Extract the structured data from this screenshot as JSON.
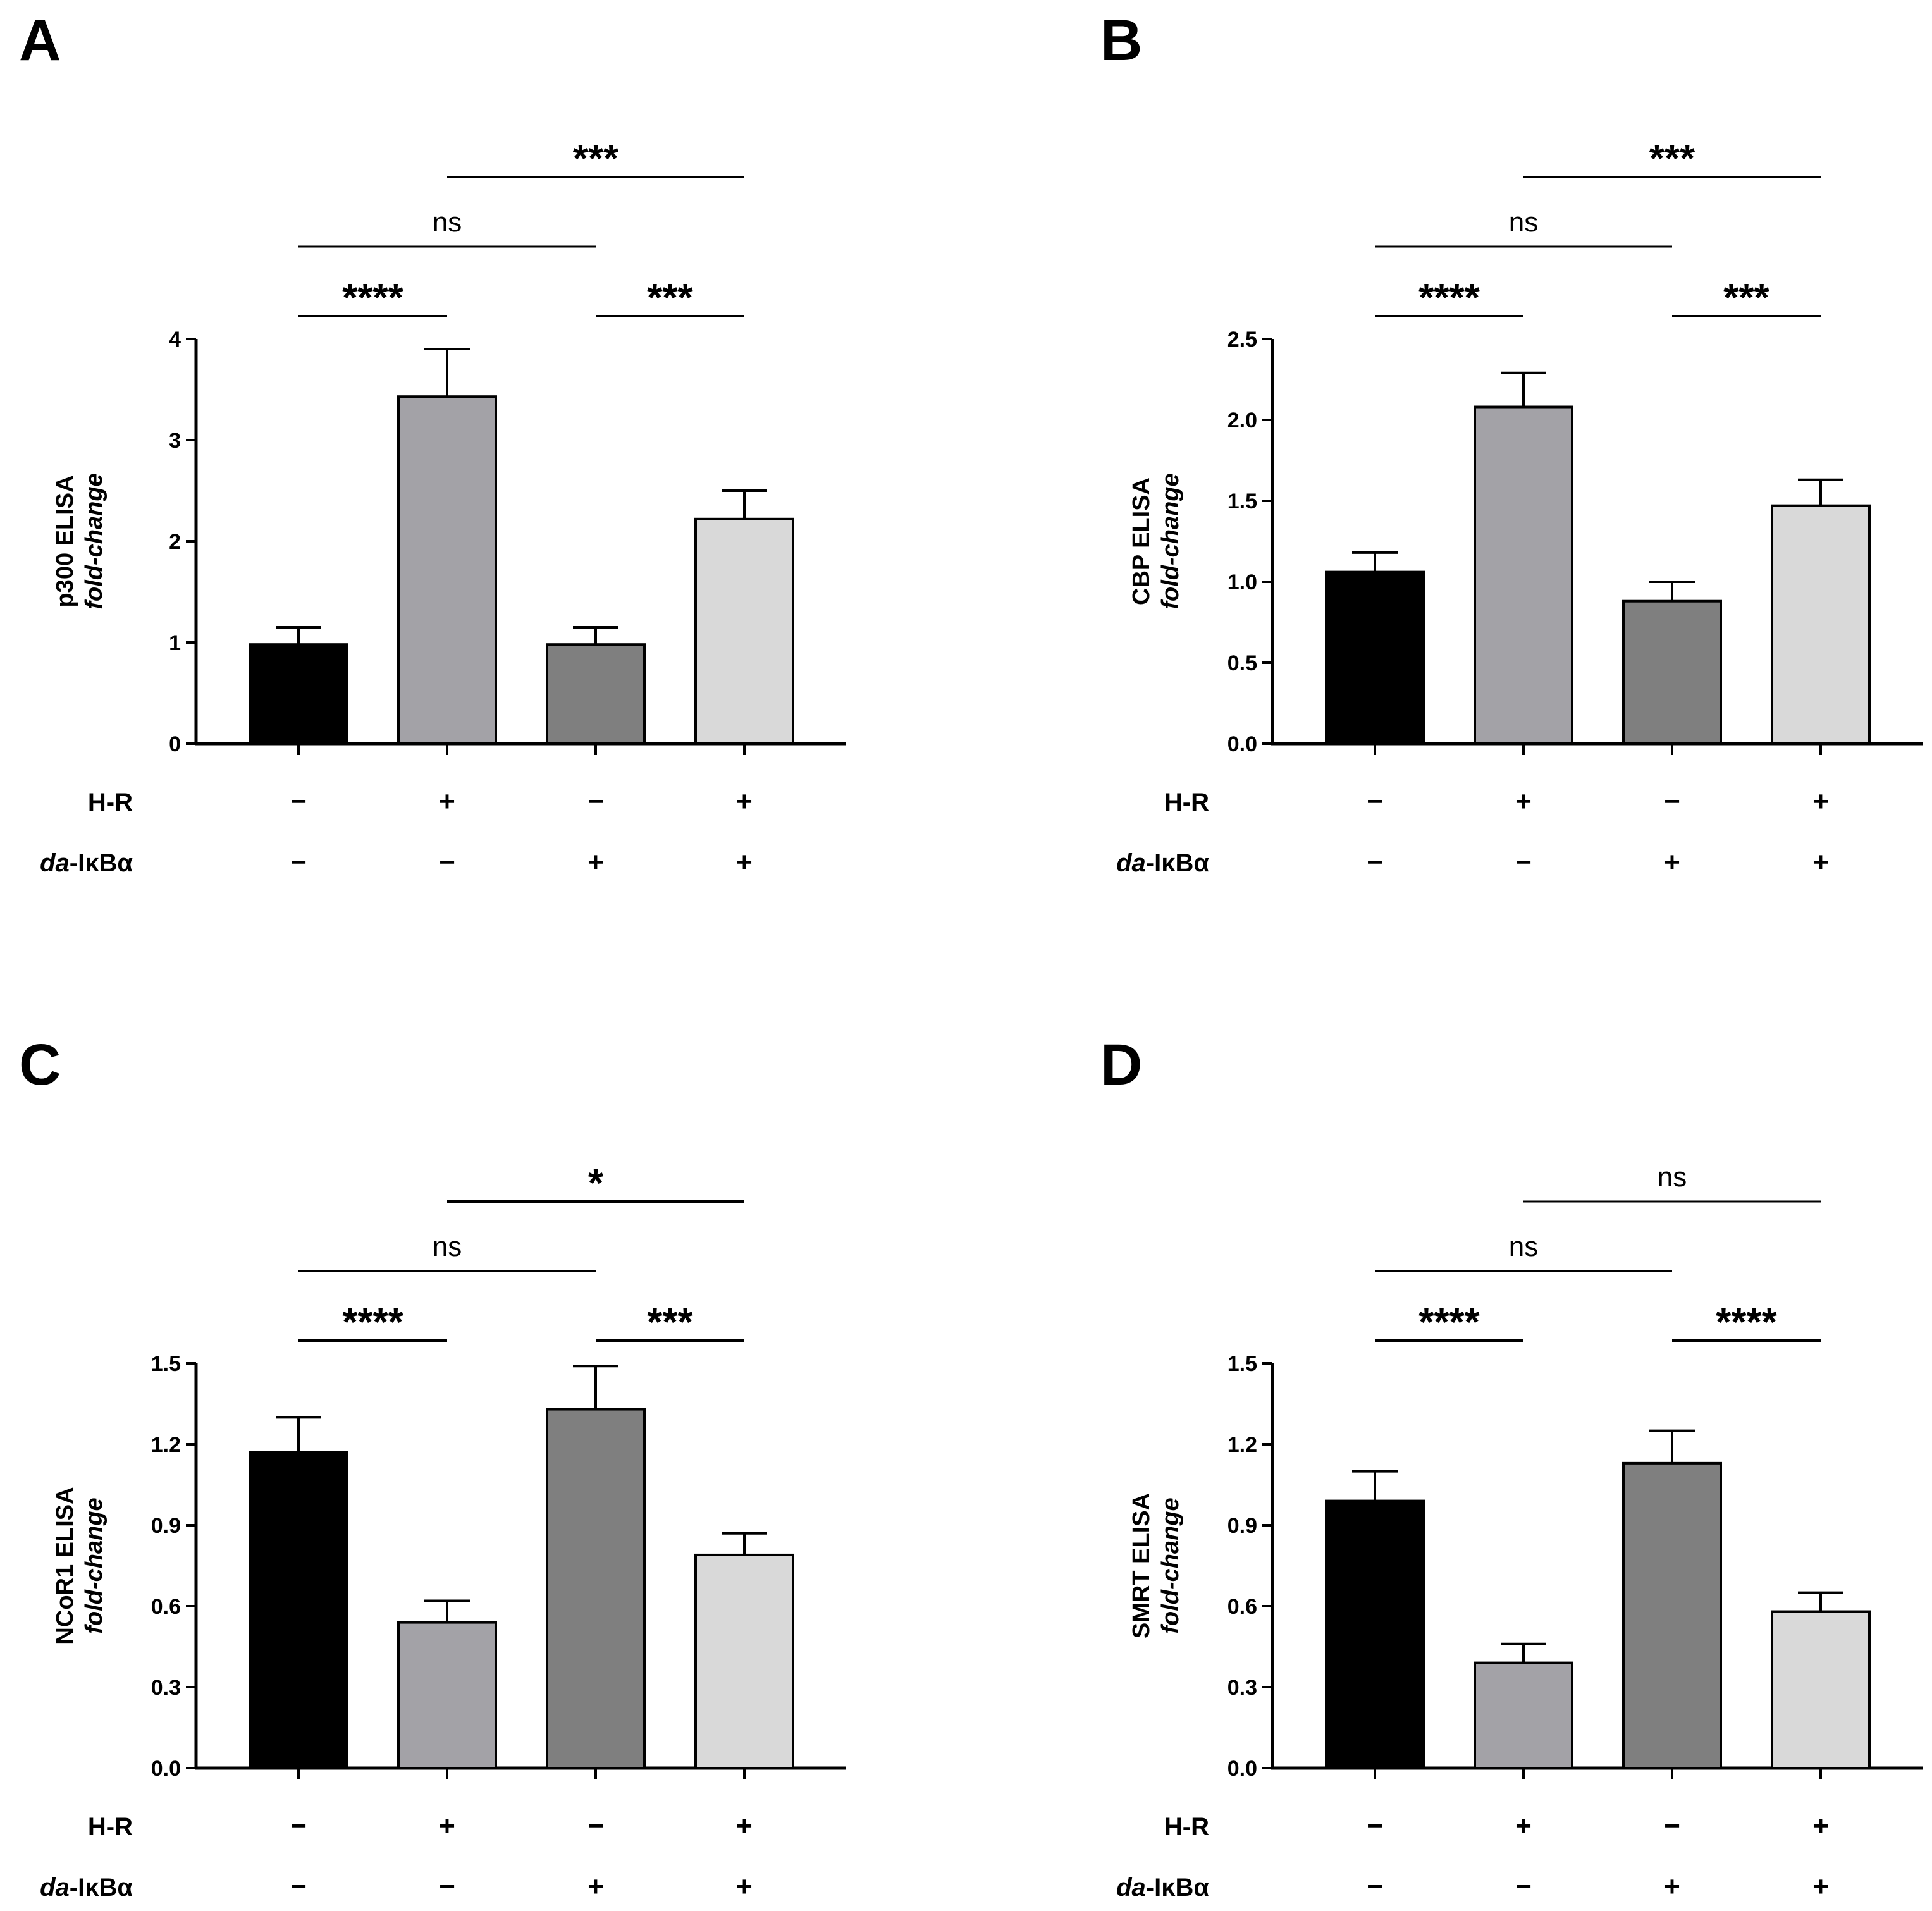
{
  "figure": {
    "row_labels": {
      "hr": "H-R",
      "da_italic": "da",
      "da_rest": "-IκBα"
    },
    "minus_sign": "−",
    "plus_sign": "+"
  },
  "chart_data": [
    {
      "panel": "A",
      "type": "bar",
      "ylabel_main": "p300  ELISA",
      "ylabel_sub": "fold-change",
      "ylim": [
        0,
        4
      ],
      "yticks": [
        "0",
        "1",
        "2",
        "3",
        "4"
      ],
      "tick_values": [
        0,
        1,
        2,
        3,
        4
      ],
      "values": [
        0.98,
        3.43,
        0.98,
        2.22
      ],
      "errors": [
        0.17,
        0.47,
        0.17,
        0.28
      ],
      "colors": [
        "#000000",
        "#a3a2a7",
        "#7f7f7f",
        "#d9d9d9"
      ],
      "hr": [
        "−",
        "+",
        "−",
        "+"
      ],
      "da": [
        "−",
        "−",
        "+",
        "+"
      ],
      "comparisons": [
        {
          "from": 0,
          "to": 1,
          "label": "****",
          "level": 0
        },
        {
          "from": 2,
          "to": 3,
          "label": "***",
          "level": 0
        },
        {
          "from": 0,
          "to": 2,
          "label": "ns",
          "level": 1
        },
        {
          "from": 1,
          "to": 3,
          "label": "***",
          "level": 2
        }
      ]
    },
    {
      "panel": "B",
      "type": "bar",
      "ylabel_main": "CBP  ELISA",
      "ylabel_sub": "fold-change",
      "ylim": [
        0,
        2.5
      ],
      "yticks": [
        "0.0",
        "0.5",
        "1.0",
        "1.5",
        "2.0",
        "2.5"
      ],
      "tick_values": [
        0,
        0.5,
        1.0,
        1.5,
        2.0,
        2.5
      ],
      "values": [
        1.06,
        2.08,
        0.88,
        1.47
      ],
      "errors": [
        0.12,
        0.21,
        0.12,
        0.16
      ],
      "colors": [
        "#000000",
        "#a3a2a7",
        "#7f7f7f",
        "#d9d9d9"
      ],
      "hr": [
        "−",
        "+",
        "−",
        "+"
      ],
      "da": [
        "−",
        "−",
        "+",
        "+"
      ],
      "comparisons": [
        {
          "from": 0,
          "to": 1,
          "label": "****",
          "level": 0
        },
        {
          "from": 2,
          "to": 3,
          "label": "***",
          "level": 0
        },
        {
          "from": 0,
          "to": 2,
          "label": "ns",
          "level": 1
        },
        {
          "from": 1,
          "to": 3,
          "label": "***",
          "level": 2
        }
      ]
    },
    {
      "panel": "C",
      "type": "bar",
      "ylabel_main": "NCoR1  ELISA",
      "ylabel_sub": "fold-change",
      "ylim": [
        0,
        1.5
      ],
      "yticks": [
        "0.0",
        "0.3",
        "0.6",
        "0.9",
        "1.2",
        "1.5"
      ],
      "tick_values": [
        0,
        0.3,
        0.6,
        0.9,
        1.2,
        1.5
      ],
      "values": [
        1.17,
        0.54,
        1.33,
        0.79
      ],
      "errors": [
        0.13,
        0.08,
        0.16,
        0.08
      ],
      "colors": [
        "#000000",
        "#a3a2a7",
        "#7f7f7f",
        "#d9d9d9"
      ],
      "hr": [
        "−",
        "+",
        "−",
        "+"
      ],
      "da": [
        "−",
        "−",
        "+",
        "+"
      ],
      "comparisons": [
        {
          "from": 0,
          "to": 1,
          "label": "****",
          "level": 0
        },
        {
          "from": 2,
          "to": 3,
          "label": "***",
          "level": 0
        },
        {
          "from": 0,
          "to": 2,
          "label": "ns",
          "level": 1
        },
        {
          "from": 1,
          "to": 3,
          "label": "*",
          "level": 2
        }
      ]
    },
    {
      "panel": "D",
      "type": "bar",
      "ylabel_main": "SMRT  ELISA",
      "ylabel_sub": "fold-change",
      "ylim": [
        0,
        1.5
      ],
      "yticks": [
        "0.0",
        "0.3",
        "0.6",
        "0.9",
        "1.2",
        "1.5"
      ],
      "tick_values": [
        0,
        0.3,
        0.6,
        0.9,
        1.2,
        1.5
      ],
      "values": [
        0.99,
        0.39,
        1.13,
        0.58
      ],
      "errors": [
        0.11,
        0.07,
        0.12,
        0.07
      ],
      "colors": [
        "#000000",
        "#a3a2a7",
        "#7f7f7f",
        "#d9d9d9"
      ],
      "hr": [
        "−",
        "+",
        "−",
        "+"
      ],
      "da": [
        "−",
        "−",
        "+",
        "+"
      ],
      "comparisons": [
        {
          "from": 0,
          "to": 1,
          "label": "****",
          "level": 0
        },
        {
          "from": 2,
          "to": 3,
          "label": "****",
          "level": 0
        },
        {
          "from": 0,
          "to": 2,
          "label": "ns",
          "level": 1
        },
        {
          "from": 1,
          "to": 3,
          "label": "ns",
          "level": 2
        }
      ]
    }
  ]
}
